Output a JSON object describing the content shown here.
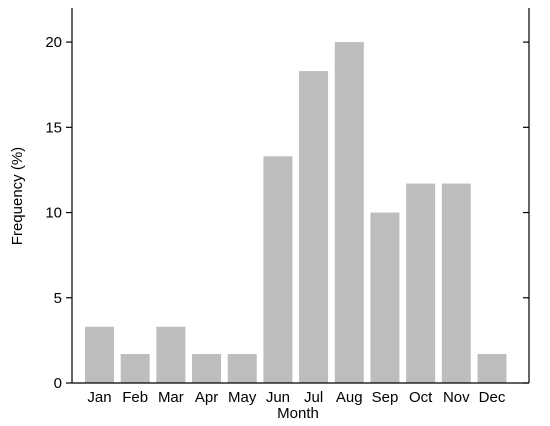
{
  "chart_data": {
    "type": "bar",
    "title": "",
    "xlabel": "Month",
    "ylabel": "Frequency (%)",
    "categories": [
      "Jan",
      "Feb",
      "Mar",
      "Apr",
      "May",
      "Jun",
      "Jul",
      "Aug",
      "Sep",
      "Oct",
      "Nov",
      "Dec"
    ],
    "values": [
      3.3,
      1.7,
      3.3,
      1.7,
      1.7,
      13.3,
      18.3,
      20.0,
      10.0,
      11.7,
      11.7,
      1.7
    ],
    "ylim": [
      0,
      22
    ],
    "yticks": [
      0,
      5,
      10,
      15,
      20
    ],
    "ytick_labels": [
      "0",
      "5",
      "10",
      "15",
      "20"
    ],
    "grid": false,
    "legend": "none",
    "bar_color": "#bdbdbd",
    "frame_color": "#000000"
  }
}
